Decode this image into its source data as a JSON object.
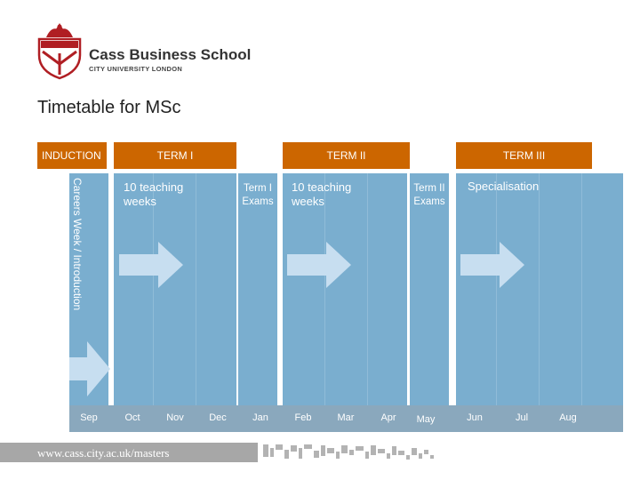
{
  "header": {
    "school_name": "Cass Business School",
    "university": "CITY UNIVERSITY LONDON"
  },
  "page": {
    "title": "Timetable for MSc"
  },
  "bands": {
    "induction": "INDUCTION",
    "term1": "TERM I",
    "term2": "TERM II",
    "term3": "TERM III"
  },
  "body": {
    "induction_text": "Careers Week / Introduction",
    "term1_teaching": "10 teaching weeks",
    "term1_exams": "Term I Exams",
    "term2_teaching": "10 teaching weeks",
    "term2_exams": "Term II Exams",
    "term3_text": "Specialisation"
  },
  "months": [
    "Sep",
    "Oct",
    "Nov",
    "Dec",
    "Jan",
    "Feb",
    "Mar",
    "Apr",
    "May",
    "Jun",
    "Jul",
    "Aug"
  ],
  "footer": {
    "url": "www.cass.city.ac.uk/masters"
  },
  "colors": {
    "band": "#cc6600",
    "column": "#7aaecf",
    "month_bar": "#8aa8bd"
  }
}
